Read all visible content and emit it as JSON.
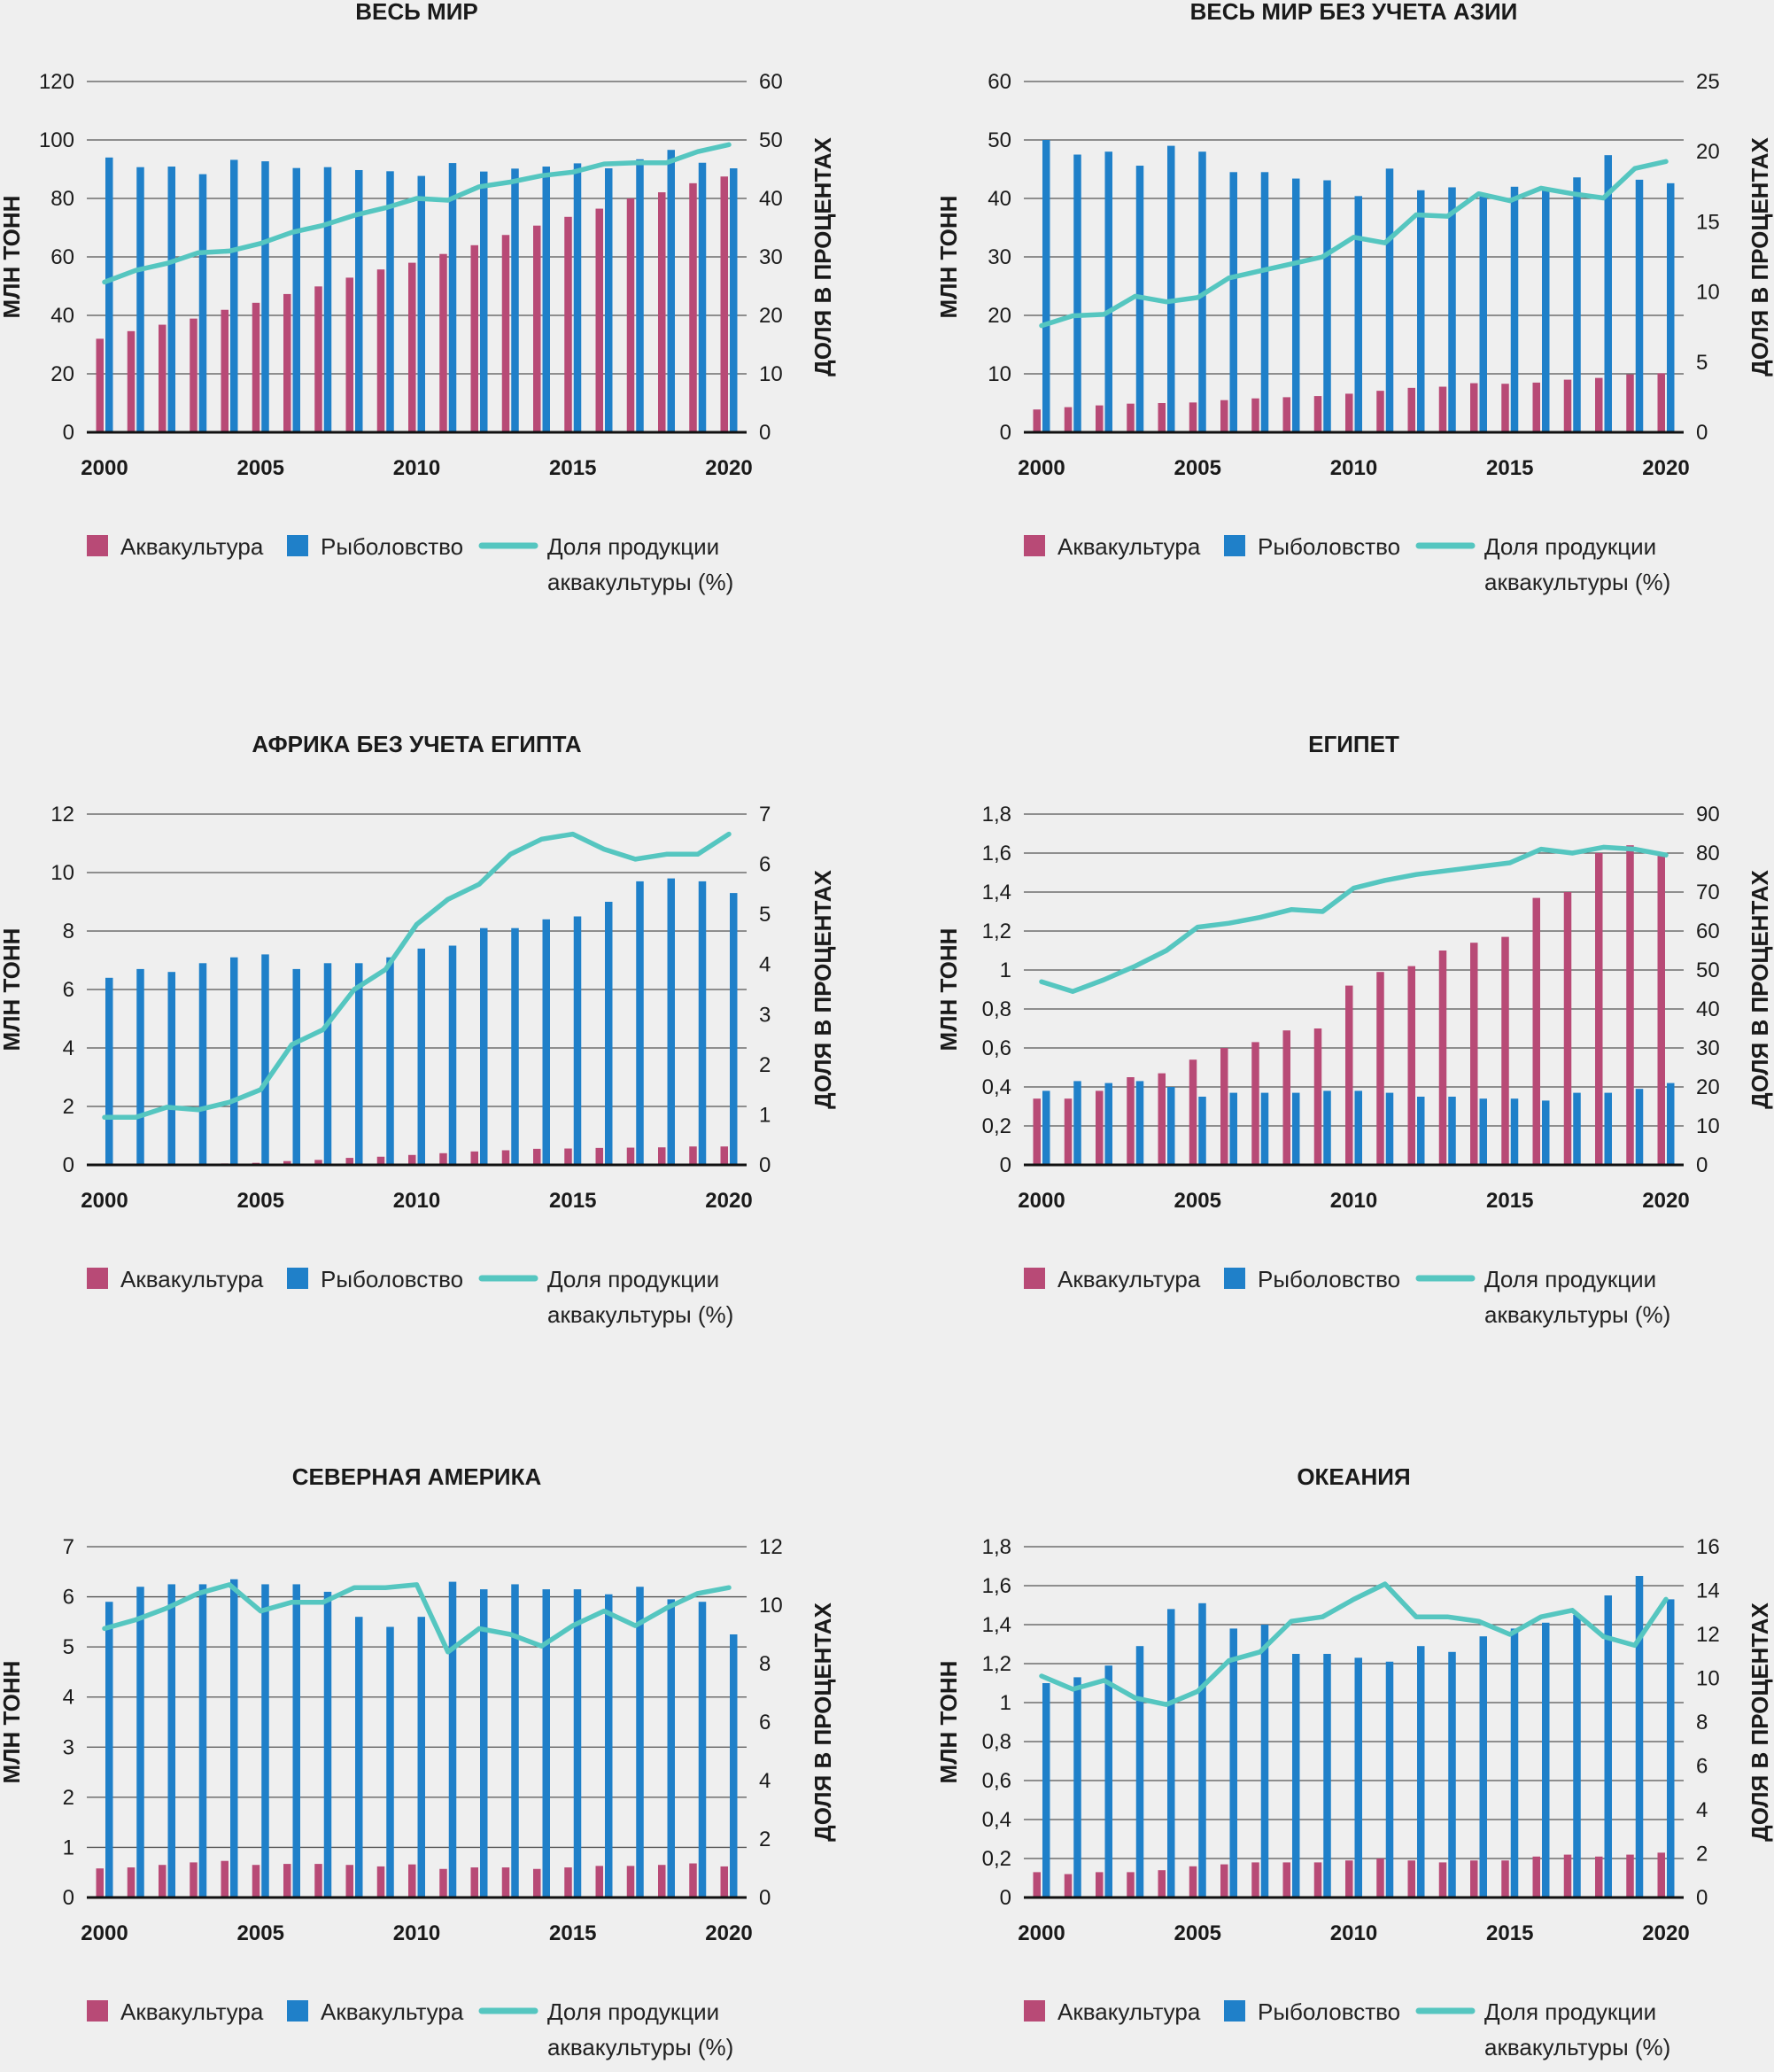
{
  "colors": {
    "aquaculture": "#b84a76",
    "fishing": "#1f80c9",
    "share": "#55c6c0"
  },
  "chart_data": [
    {
      "type": "bar+line",
      "title": "ВЕСЬ МИР",
      "ylabel_left": "МЛН ТОНН",
      "ylabel_right": "ДОЛЯ В ПРОЦЕНТАХ",
      "ylim_left": [
        0,
        120
      ],
      "ylim_right": [
        0,
        60
      ],
      "yticks_left": [
        "0",
        "20",
        "40",
        "60",
        "80",
        "100",
        "120"
      ],
      "yticks_right": [
        "0",
        "10",
        "20",
        "30",
        "40",
        "50",
        "60"
      ],
      "xticks": [
        "2000",
        "2005",
        "2010",
        "2015",
        "2020"
      ],
      "years": [
        2000,
        2001,
        2002,
        2003,
        2004,
        2005,
        2006,
        2007,
        2008,
        2009,
        2010,
        2011,
        2012,
        2013,
        2014,
        2015,
        2016,
        2017,
        2018,
        2019,
        2020
      ],
      "series": [
        {
          "name": "Аквакультура",
          "kind": "bar",
          "values": [
            32,
            34.6,
            36.8,
            38.9,
            41.9,
            44.3,
            47.3,
            49.9,
            52.9,
            55.7,
            58,
            61,
            64,
            67.5,
            70.7,
            73.7,
            76.5,
            80,
            82.1,
            85.2,
            87.5
          ]
        },
        {
          "name": "Рыболовство",
          "kind": "bar",
          "values": [
            94,
            90.7,
            90.9,
            88.3,
            93.2,
            92.7,
            90.4,
            90.7,
            89.7,
            89.3,
            87.7,
            92.1,
            89.2,
            90.2,
            90.9,
            92,
            90.3,
            93.4,
            96.6,
            92.2,
            90.3
          ]
        },
        {
          "name": "Доля продукции аквакультуры (%)",
          "kind": "line",
          "axis": "right",
          "values": [
            25.7,
            27.7,
            28.9,
            30.7,
            31,
            32.3,
            34.2,
            35.4,
            37.1,
            38.4,
            40,
            39.7,
            42,
            42.8,
            43.9,
            44.5,
            45.9,
            46.1,
            46.1,
            48,
            49.2
          ]
        }
      ],
      "legend": [
        "Аквакультура",
        "Рыболовство",
        "Доля продукции аквакультуры (%)"
      ]
    },
    {
      "type": "bar+line",
      "title": "ВЕСЬ МИР БЕЗ УЧЕТА АЗИИ",
      "ylabel_left": "МЛН ТОНН",
      "ylabel_right": "ДОЛЯ В ПРОЦЕНТАХ",
      "ylim_left": [
        0,
        60
      ],
      "ylim_right": [
        0,
        25
      ],
      "yticks_left": [
        "0",
        "10",
        "20",
        "30",
        "40",
        "50",
        "60"
      ],
      "yticks_right": [
        "0",
        "5",
        "10",
        "15",
        "20",
        "25"
      ],
      "xticks": [
        "2000",
        "2005",
        "2010",
        "2015",
        "2020"
      ],
      "years": [
        2000,
        2001,
        2002,
        2003,
        2004,
        2005,
        2006,
        2007,
        2008,
        2009,
        2010,
        2011,
        2012,
        2013,
        2014,
        2015,
        2016,
        2017,
        2018,
        2019,
        2020
      ],
      "series": [
        {
          "name": "Аквакультура",
          "kind": "bar",
          "values": [
            3.9,
            4.3,
            4.6,
            4.9,
            5,
            5.1,
            5.5,
            5.8,
            6,
            6.2,
            6.6,
            7.1,
            7.6,
            7.8,
            8.4,
            8.3,
            8.5,
            9,
            9.3,
            9.9,
            10.1
          ]
        },
        {
          "name": "Рыболовство",
          "kind": "bar",
          "values": [
            50,
            47.5,
            48,
            45.6,
            49,
            48,
            44.5,
            44.5,
            43.4,
            43.1,
            40.4,
            45.1,
            41.4,
            41.9,
            40.9,
            42,
            41.3,
            43.6,
            47.4,
            43.2,
            42.6
          ]
        },
        {
          "name": "Доля продукции аквакультуры (%)",
          "kind": "line",
          "axis": "right",
          "values": [
            7.6,
            8.3,
            8.4,
            9.7,
            9.3,
            9.6,
            11,
            11.5,
            12,
            12.5,
            13.9,
            13.5,
            15.5,
            15.4,
            17,
            16.5,
            17.4,
            17,
            16.7,
            18.8,
            19.3
          ]
        }
      ],
      "legend": [
        "Аквакультура",
        "Рыболовство",
        "Доля продукции аквакультуры (%)"
      ]
    },
    {
      "type": "bar+line",
      "title": "АФРИКА БЕЗ УЧЕТА ЕГИПТА",
      "ylabel_left": "МЛН ТОНН",
      "ylabel_right": "ДОЛЯ В ПРОЦЕНТАХ",
      "ylim_left": [
        0,
        12
      ],
      "ylim_right": [
        0,
        7
      ],
      "yticks_left": [
        "0",
        "2",
        "4",
        "6",
        "8",
        "10",
        "12"
      ],
      "yticks_right": [
        "0",
        "1",
        "2",
        "3",
        "4",
        "5",
        "6",
        "7"
      ],
      "xticks": [
        "2000",
        "2005",
        "2010",
        "2015",
        "2020"
      ],
      "years": [
        2000,
        2001,
        2002,
        2003,
        2004,
        2005,
        2006,
        2007,
        2008,
        2009,
        2010,
        2011,
        2012,
        2013,
        2014,
        2015,
        2016,
        2017,
        2018,
        2019,
        2020
      ],
      "series": [
        {
          "name": "Аквакультура",
          "kind": "bar",
          "values": [
            0.02,
            0.03,
            0.03,
            0.04,
            0.05,
            0.07,
            0.13,
            0.17,
            0.24,
            0.28,
            0.34,
            0.4,
            0.46,
            0.5,
            0.55,
            0.56,
            0.58,
            0.59,
            0.6,
            0.63,
            0.63
          ]
        },
        {
          "name": "Рыболовство",
          "kind": "bar",
          "values": [
            6.4,
            6.7,
            6.6,
            6.9,
            7.1,
            7.2,
            6.7,
            6.9,
            6.9,
            7.1,
            7.4,
            7.5,
            8.1,
            8.1,
            8.4,
            8.5,
            9,
            9.7,
            9.8,
            9.7,
            9.3
          ]
        },
        {
          "name": "Доля продукции аквакультуры (%)",
          "kind": "line",
          "axis": "right",
          "values": [
            0.95,
            0.95,
            1.15,
            1.1,
            1.25,
            1.5,
            2.4,
            2.7,
            3.5,
            3.9,
            4.8,
            5.3,
            5.6,
            6.2,
            6.5,
            6.6,
            6.3,
            6.1,
            6.2,
            6.2,
            6.6
          ]
        }
      ],
      "legend": [
        "Аквакультура",
        "Рыболовство",
        "Доля продукции аквакультуры (%)"
      ]
    },
    {
      "type": "bar+line",
      "title": "ЕГИПЕТ",
      "ylabel_left": "МЛН ТОНН",
      "ylabel_right": "ДОЛЯ В ПРОЦЕНТАХ",
      "ylim_left": [
        0,
        1.8
      ],
      "ylim_right": [
        0,
        90
      ],
      "yticks_left": [
        "0",
        "0,2",
        "0,4",
        "0,6",
        "0,8",
        "1",
        "1,2",
        "1,4",
        "1,6",
        "1,8"
      ],
      "yticks_right": [
        "0",
        "10",
        "20",
        "30",
        "40",
        "50",
        "60",
        "70",
        "80",
        "90"
      ],
      "xticks": [
        "2000",
        "2005",
        "2010",
        "2015",
        "2020"
      ],
      "years": [
        2000,
        2001,
        2002,
        2003,
        2004,
        2005,
        2006,
        2007,
        2008,
        2009,
        2010,
        2011,
        2012,
        2013,
        2014,
        2015,
        2016,
        2017,
        2018,
        2019,
        2020
      ],
      "series": [
        {
          "name": "Аквакультура",
          "kind": "bar",
          "values": [
            0.34,
            0.34,
            0.38,
            0.45,
            0.47,
            0.54,
            0.6,
            0.63,
            0.69,
            0.7,
            0.92,
            0.99,
            1.02,
            1.1,
            1.14,
            1.17,
            1.37,
            1.4,
            1.6,
            1.64,
            1.59
          ]
        },
        {
          "name": "Рыболовство",
          "kind": "bar",
          "values": [
            0.38,
            0.43,
            0.42,
            0.43,
            0.4,
            0.35,
            0.37,
            0.37,
            0.37,
            0.38,
            0.38,
            0.37,
            0.35,
            0.35,
            0.34,
            0.34,
            0.33,
            0.37,
            0.37,
            0.39,
            0.42
          ]
        },
        {
          "name": "Доля продукции аквакультуры (%)",
          "kind": "line",
          "axis": "right",
          "values": [
            47,
            44.5,
            47.5,
            51,
            55,
            61,
            62,
            63.5,
            65.5,
            65,
            71,
            73,
            74.5,
            75.5,
            76.5,
            77.5,
            81,
            80,
            81.5,
            81,
            79.5
          ]
        }
      ],
      "legend": [
        "Аквакультура",
        "Рыболовство",
        "Доля продукции аквакультуры (%)"
      ]
    },
    {
      "type": "bar+line",
      "title": "СЕВЕРНАЯ АМЕРИКА",
      "ylabel_left": "МЛН ТОНН",
      "ylabel_right": "ДОЛЯ В ПРОЦЕНТАХ",
      "ylim_left": [
        0,
        7
      ],
      "ylim_right": [
        0,
        12
      ],
      "yticks_left": [
        "0",
        "1",
        "2",
        "3",
        "4",
        "5",
        "6",
        "7"
      ],
      "yticks_right": [
        "0",
        "2",
        "4",
        "6",
        "8",
        "10",
        "12"
      ],
      "xticks": [
        "2000",
        "2005",
        "2010",
        "2015",
        "2020"
      ],
      "years": [
        2000,
        2001,
        2002,
        2003,
        2004,
        2005,
        2006,
        2007,
        2008,
        2009,
        2010,
        2011,
        2012,
        2013,
        2014,
        2015,
        2016,
        2017,
        2018,
        2019,
        2020
      ],
      "series": [
        {
          "name": "Аквакультура",
          "kind": "bar",
          "values": [
            0.58,
            0.6,
            0.65,
            0.7,
            0.73,
            0.65,
            0.67,
            0.67,
            0.65,
            0.62,
            0.66,
            0.57,
            0.6,
            0.6,
            0.57,
            0.6,
            0.63,
            0.63,
            0.65,
            0.68,
            0.62
          ]
        },
        {
          "name": "Аквакультура",
          "kind": "bar",
          "values": [
            5.9,
            6.2,
            6.25,
            6.25,
            6.35,
            6.25,
            6.25,
            6.1,
            5.6,
            5.4,
            5.6,
            6.3,
            6.15,
            6.25,
            6.15,
            6.15,
            6.05,
            6.2,
            5.95,
            5.9,
            5.25
          ]
        },
        {
          "name": "Доля продукции аквакультуры (%)",
          "kind": "line",
          "axis": "right",
          "values": [
            9.2,
            9.5,
            9.9,
            10.4,
            10.7,
            9.8,
            10.1,
            10.1,
            10.6,
            10.6,
            10.7,
            8.4,
            9.2,
            9,
            8.6,
            9.3,
            9.8,
            9.3,
            9.9,
            10.4,
            10.6
          ]
        }
      ],
      "legend": [
        "Аквакультура",
        "Аквакультура",
        "Доля продукции аквакультуры (%)"
      ]
    },
    {
      "type": "bar+line",
      "title": "ОКЕАНИЯ",
      "ylabel_left": "МЛН ТОНН",
      "ylabel_right": "ДОЛЯ В ПРОЦЕНТАХ",
      "ylim_left": [
        0,
        1.8
      ],
      "ylim_right": [
        0,
        16
      ],
      "yticks_left": [
        "0",
        "0,2",
        "0,4",
        "0,6",
        "0,8",
        "1",
        "1,2",
        "1,4",
        "1,6",
        "1,8"
      ],
      "yticks_right": [
        "0",
        "2",
        "4",
        "6",
        "8",
        "10",
        "12",
        "14",
        "16"
      ],
      "xticks": [
        "2000",
        "2005",
        "2010",
        "2015",
        "2020"
      ],
      "years": [
        2000,
        2001,
        2002,
        2003,
        2004,
        2005,
        2006,
        2007,
        2008,
        2009,
        2010,
        2011,
        2012,
        2013,
        2014,
        2015,
        2016,
        2017,
        2018,
        2019,
        2020
      ],
      "series": [
        {
          "name": "Аквакультура",
          "kind": "bar",
          "values": [
            0.13,
            0.12,
            0.13,
            0.13,
            0.14,
            0.16,
            0.17,
            0.18,
            0.18,
            0.18,
            0.19,
            0.2,
            0.19,
            0.18,
            0.19,
            0.19,
            0.21,
            0.22,
            0.21,
            0.22,
            0.23
          ]
        },
        {
          "name": "Рыболовство",
          "kind": "bar",
          "values": [
            1.1,
            1.13,
            1.19,
            1.29,
            1.48,
            1.51,
            1.38,
            1.4,
            1.25,
            1.25,
            1.23,
            1.21,
            1.29,
            1.26,
            1.34,
            1.38,
            1.41,
            1.45,
            1.55,
            1.65,
            1.53
          ]
        },
        {
          "name": "Доля продукции аквакультуры (%)",
          "kind": "line",
          "axis": "right",
          "values": [
            10.1,
            9.5,
            9.9,
            9.1,
            8.8,
            9.4,
            10.8,
            11.2,
            12.6,
            12.8,
            13.6,
            14.3,
            12.8,
            12.8,
            12.6,
            12,
            12.8,
            13.1,
            11.9,
            11.5,
            13.6
          ]
        }
      ],
      "legend": [
        "Аквакультура",
        "Рыболовство",
        "Доля продукции аквакультуры (%)"
      ]
    }
  ]
}
